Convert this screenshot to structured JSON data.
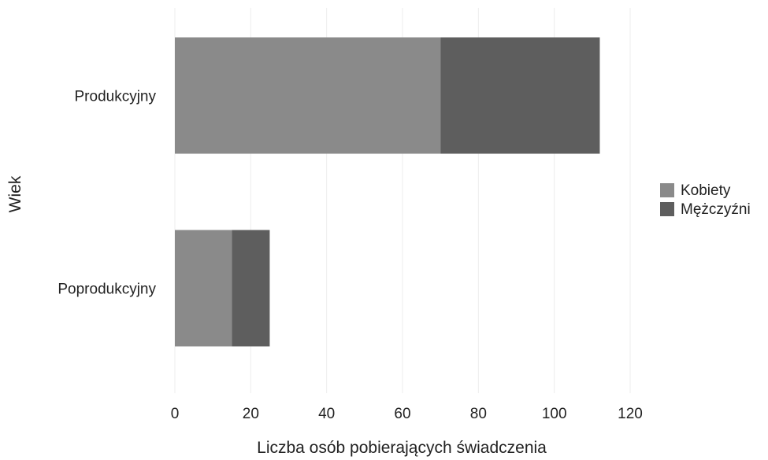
{
  "chart_data": {
    "type": "bar",
    "orientation": "horizontal",
    "stacked": true,
    "categories": [
      "Produkcyjny",
      "Poprodukcyjny"
    ],
    "series": [
      {
        "name": "Kobiety",
        "values": [
          70,
          15
        ],
        "color": "#8a8a8a"
      },
      {
        "name": "Mężczyźni",
        "values": [
          42,
          10
        ],
        "color": "#5e5e5e"
      }
    ],
    "xlabel": "Liczba osób pobierających świadczenia",
    "ylabel": "Wiek",
    "xlim": [
      0,
      120
    ],
    "xticks": [
      0,
      20,
      40,
      60,
      80,
      100,
      120
    ],
    "grid": true,
    "legend_position": "right"
  }
}
